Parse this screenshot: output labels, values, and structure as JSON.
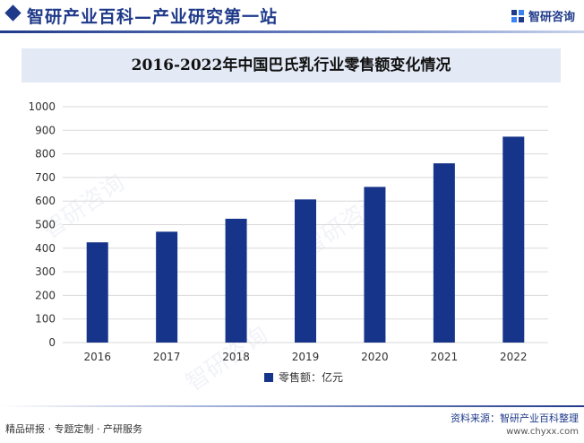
{
  "header": {
    "title": "智研产业百科—产业研究第一站",
    "brand": "智研咨询",
    "icon": "zhiyan-logo-icon"
  },
  "watermark": {
    "text": "智研咨询"
  },
  "chart_data": {
    "type": "bar",
    "title": "2016-2022年中国巴氏乳行业零售额变化情况",
    "categories": [
      "2016",
      "2017",
      "2018",
      "2019",
      "2020",
      "2021",
      "2022"
    ],
    "series": [
      {
        "name": "零售额：亿元",
        "values": [
          425,
          470,
          525,
          607,
          660,
          760,
          873
        ],
        "color": "#16348a"
      }
    ],
    "xlabel": "",
    "ylabel": "",
    "ylim": [
      0,
      1000
    ],
    "yticks": [
      0,
      100,
      200,
      300,
      400,
      500,
      600,
      700,
      800,
      900,
      1000
    ],
    "grid": true,
    "legend": "bottom-center"
  },
  "footer": {
    "left": "精品研报 · 专题定制 · 产研服务",
    "source": "资料来源：智研产业百科整理",
    "url": "www.chyxx.com"
  }
}
